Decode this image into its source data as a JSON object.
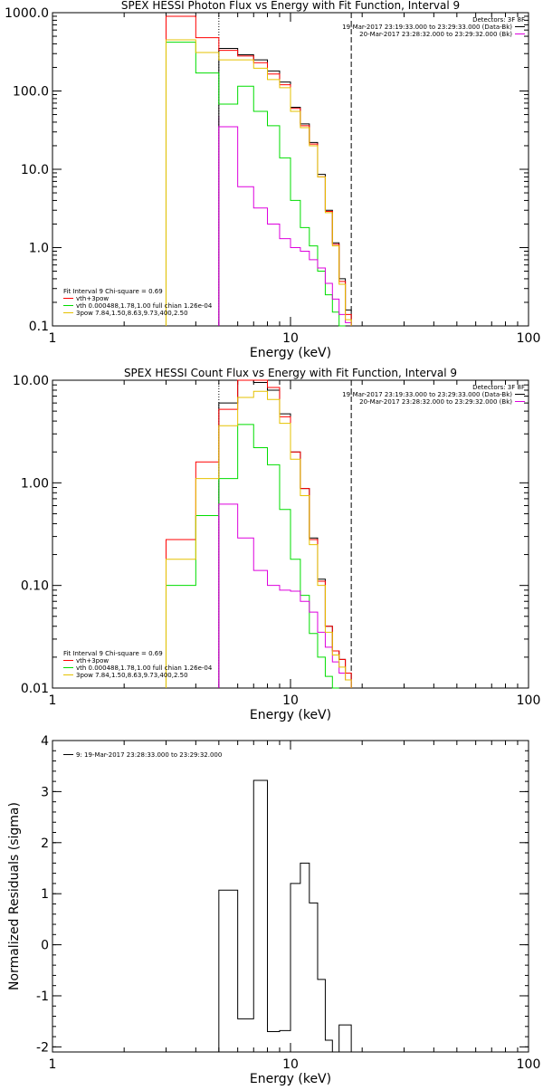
{
  "colors": {
    "total": "#000000",
    "bk": "#ff0000",
    "vth": "#00dd00",
    "pow": "#dd00dd",
    "fit": "#e6c200",
    "axis": "#000000"
  },
  "chart_data": [
    {
      "type": "line",
      "step": true,
      "title": "SPEX HESSI Photon Flux vs Energy with Fit Function, Interval 9",
      "xlabel": "Energy (keV)",
      "ylabel": "",
      "xscale": "log",
      "yscale": "log",
      "xlim": [
        1,
        100
      ],
      "ylim": [
        0.1,
        1000
      ],
      "xticks": [
        {
          "v": 1,
          "label": "1"
        },
        {
          "v": 10,
          "label": "10"
        },
        {
          "v": 100,
          "label": "100"
        }
      ],
      "yticks": [
        {
          "v": 0.1,
          "label": "0.1"
        },
        {
          "v": 1,
          "label": "1.0"
        },
        {
          "v": 10,
          "label": "10.0"
        },
        {
          "v": 100,
          "label": "100.0"
        },
        {
          "v": 1000,
          "label": "1000.0"
        }
      ],
      "vlines": [
        {
          "x": 5.0,
          "style": "dotted",
          "color_key": "total"
        },
        {
          "x": 5.0,
          "style": "solid",
          "color_key": "pow"
        },
        {
          "x": 18.0,
          "style": "dashed",
          "color_key": "total"
        }
      ],
      "bin_edges": [
        3,
        4,
        5,
        6,
        7,
        8,
        9,
        10,
        11,
        12,
        13,
        14,
        15,
        16,
        17,
        18
      ],
      "series": [
        {
          "color_key": "total",
          "values": [
            null,
            null,
            350,
            290,
            250,
            180,
            130,
            62,
            38,
            22,
            8.6,
            3.0,
            1.15,
            0.4,
            0.16
          ]
        },
        {
          "color_key": "bk",
          "values": [
            900,
            480,
            330,
            280,
            230,
            165,
            120,
            60,
            36,
            21,
            8.0,
            2.9,
            1.1,
            0.37,
            0.14
          ]
        },
        {
          "color_key": "vth",
          "values": [
            420,
            170,
            68,
            115,
            55,
            36,
            14,
            4.0,
            1.8,
            1.05,
            0.5,
            0.25,
            0.15,
            0.1,
            null
          ]
        },
        {
          "color_key": "pow",
          "values": [
            null,
            null,
            35,
            6.0,
            3.2,
            2.0,
            1.3,
            1.0,
            0.9,
            0.7,
            0.55,
            0.35,
            0.22,
            0.14,
            0.11
          ]
        },
        {
          "color_key": "fit",
          "values": [
            450,
            310,
            250,
            250,
            195,
            140,
            110,
            55,
            34,
            20,
            8.0,
            2.8,
            1.05,
            0.34,
            0.12
          ]
        }
      ],
      "legend_tr": {
        "header": "Detectors: 3F 8F",
        "entries": [
          {
            "text": "19-Mar-2017 23:19:33.000 to 23:29:33.000 (Data-Bk)",
            "color_key": "total"
          },
          {
            "text": "20-Mar-2017 23:28:32.000 to 23:29:32.000 (Bk)",
            "color_key": "pow"
          }
        ]
      },
      "legend_bl": {
        "header": "Fit Interval 9   Chi-square = 0.69",
        "entries": [
          {
            "text": "vth+3pow",
            "color_key": "bk"
          },
          {
            "text": "vth 0.000488,1.78,1.00  full chian 1.26e-04",
            "color_key": "vth"
          },
          {
            "text": "3pow 7.84,1.50,8.63,9.73,400,2.50",
            "color_key": "fit"
          }
        ]
      }
    },
    {
      "type": "line",
      "step": true,
      "title": "SPEX HESSI Count Flux vs Energy with Fit Function, Interval 9",
      "xlabel": "Energy (keV)",
      "ylabel": "",
      "xscale": "log",
      "yscale": "log",
      "xlim": [
        1,
        100
      ],
      "ylim": [
        0.01,
        10
      ],
      "xticks": [
        {
          "v": 1,
          "label": "1"
        },
        {
          "v": 10,
          "label": "10"
        },
        {
          "v": 100,
          "label": "100"
        }
      ],
      "yticks": [
        {
          "v": 0.01,
          "label": "0.01"
        },
        {
          "v": 0.1,
          "label": "0.10"
        },
        {
          "v": 1,
          "label": "1.00"
        },
        {
          "v": 10,
          "label": "10.00"
        }
      ],
      "vlines": [
        {
          "x": 5.0,
          "style": "dotted",
          "color_key": "total"
        },
        {
          "x": 5.0,
          "style": "solid",
          "color_key": "pow"
        },
        {
          "x": 18.0,
          "style": "dashed",
          "color_key": "total"
        }
      ],
      "bin_edges": [
        3,
        4,
        5,
        6,
        7,
        8,
        9,
        10,
        11,
        12,
        13,
        14,
        15,
        16,
        17,
        18
      ],
      "series": [
        {
          "color_key": "total",
          "values": [
            null,
            null,
            6.0,
            10.0,
            9.5,
            8.0,
            4.7,
            2.0,
            0.88,
            0.29,
            0.115,
            0.04,
            0.023,
            0.019,
            0.014
          ]
        },
        {
          "color_key": "bk",
          "values": [
            0.28,
            1.6,
            5.2,
            10.0,
            10.5,
            8.5,
            4.4,
            2.0,
            0.88,
            0.28,
            0.11,
            0.04,
            0.023,
            0.019,
            0.014
          ]
        },
        {
          "color_key": "vth",
          "values": [
            0.1,
            0.48,
            1.1,
            3.7,
            2.2,
            1.5,
            0.55,
            0.18,
            0.08,
            0.034,
            0.02,
            0.013,
            0.01,
            null,
            null
          ]
        },
        {
          "color_key": "pow",
          "values": [
            null,
            null,
            0.62,
            0.29,
            0.14,
            0.1,
            0.09,
            0.088,
            0.07,
            0.055,
            0.035,
            0.025,
            0.018,
            0.014,
            0.012
          ]
        },
        {
          "color_key": "fit",
          "values": [
            0.18,
            1.1,
            3.6,
            6.8,
            7.8,
            6.5,
            3.8,
            1.7,
            0.75,
            0.25,
            0.1,
            0.035,
            0.021,
            0.016,
            0.012
          ]
        }
      ],
      "legend_tr": {
        "header": "Detectors: 3F 8F",
        "entries": [
          {
            "text": "19-Mar-2017 23:19:33.000 to 23:29:33.000 (Data-Bk)",
            "color_key": "total"
          },
          {
            "text": "20-Mar-2017 23:28:32.000 to 23:29:32.000 (Bk)",
            "color_key": "pow"
          }
        ]
      },
      "legend_bl": {
        "header": "Fit Interval 9   Chi-square = 0.69",
        "entries": [
          {
            "text": "vth+3pow",
            "color_key": "bk"
          },
          {
            "text": "vth 0.000488,1.78,1.00  full chian 1.26e-04",
            "color_key": "vth"
          },
          {
            "text": "3pow 7.84,1.50,8.63,9.73,400,2.50",
            "color_key": "fit"
          }
        ]
      }
    },
    {
      "type": "line",
      "step": true,
      "title": "",
      "xlabel": "Energy (keV)",
      "ylabel": "Normalized Residuals (sigma)",
      "xscale": "log",
      "yscale": "linear",
      "xlim": [
        1,
        100
      ],
      "ylim": [
        -2.1,
        4.0
      ],
      "xticks": [
        {
          "v": 1,
          "label": "1"
        },
        {
          "v": 10,
          "label": "10"
        },
        {
          "v": 100,
          "label": "100"
        }
      ],
      "yticks": [
        {
          "v": -2,
          "label": "-2"
        },
        {
          "v": -1,
          "label": "-1"
        },
        {
          "v": 0,
          "label": "0"
        },
        {
          "v": 1,
          "label": "1"
        },
        {
          "v": 2,
          "label": "2"
        },
        {
          "v": 3,
          "label": "3"
        },
        {
          "v": 4,
          "label": "4"
        }
      ],
      "vlines": [],
      "bin_edges": [
        5,
        6,
        7,
        8,
        9,
        10,
        11,
        12,
        13,
        14,
        15,
        16,
        17,
        18
      ],
      "series": [
        {
          "color_key": "total",
          "values": [
            1.07,
            -1.45,
            3.22,
            -1.7,
            -1.68,
            1.2,
            1.6,
            0.82,
            -0.68,
            -1.87,
            -2.1,
            -1.57,
            -1.57
          ]
        }
      ],
      "legend_tr": null,
      "legend_bl": null,
      "legend_tl": {
        "header": "",
        "entries": [
          {
            "text": "9: 19-Mar-2017 23:28:33.000 to 23:29:32.000",
            "color_key": "total"
          }
        ]
      }
    }
  ]
}
